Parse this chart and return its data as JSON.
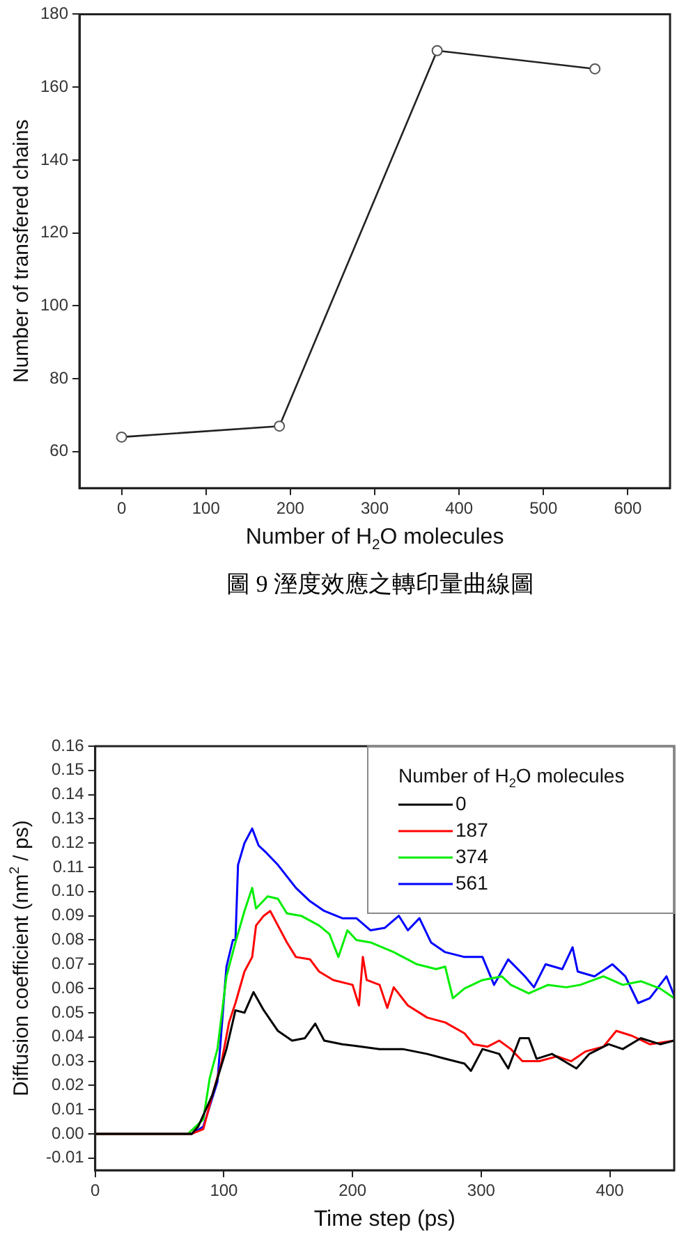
{
  "chart_data": [
    {
      "type": "line",
      "xlabel": "Number of H$_{2}$O molecules",
      "ylabel": "Number of transfered chains",
      "x": [
        0,
        187,
        374,
        561
      ],
      "values": [
        64,
        67,
        170,
        165
      ],
      "color": "#222222",
      "marker": "circle",
      "xlim": [
        -50,
        650
      ],
      "xticks": [
        0,
        100,
        200,
        300,
        400,
        500,
        600
      ],
      "ylim": [
        50,
        180
      ],
      "yticks": [
        60,
        80,
        100,
        120,
        140,
        160,
        180
      ],
      "annotations": [
        "圖 9 溼度效應之轉印量曲線圖"
      ]
    },
    {
      "type": "line",
      "xlabel": "Time step (ps)",
      "ylabel": "Diffusion coefficient (nm$^{2}$ / ps)",
      "legend_title": "Number of H$_{2}$O molecules",
      "legend": "top right",
      "marker": "none",
      "xlim": [
        0,
        450
      ],
      "xticks": [
        0,
        100,
        200,
        300,
        400
      ],
      "ylim": [
        -0.015,
        0.16
      ],
      "yticks": [
        {
          "value": -0.01,
          "label": "-0.01"
        },
        {
          "value": 0,
          "label": "0.00"
        },
        {
          "value": 0.01,
          "label": "0.01"
        },
        {
          "value": 0.02,
          "label": "0.02"
        },
        {
          "value": 0.03,
          "label": "0.03"
        },
        {
          "value": 0.04,
          "label": "0.04"
        },
        {
          "value": 0.05,
          "label": "0.05"
        },
        {
          "value": 0.06,
          "label": "0.06"
        },
        {
          "value": 0.07,
          "label": "0.07"
        },
        {
          "value": 0.08,
          "label": "0.08"
        },
        {
          "value": 0.09,
          "label": "0.09"
        },
        {
          "value": 0.1,
          "label": "0.10"
        },
        {
          "value": 0.11,
          "label": "0.11"
        },
        {
          "value": 0.12,
          "label": "0.12"
        },
        {
          "value": 0.13,
          "label": "0.13"
        },
        {
          "value": 0.14,
          "label": "0.14"
        },
        {
          "value": 0.15,
          "label": "0.15"
        },
        {
          "value": 0.16,
          "label": "0.16"
        }
      ],
      "series": [
        {
          "name": "0",
          "color": "#000000",
          "x": [
            0,
            75,
            80,
            91,
            102,
            109,
            116,
            123,
            131,
            142,
            153,
            163,
            171,
            178,
            192,
            207,
            221,
            239,
            258,
            272,
            287,
            292,
            301,
            314,
            321,
            330,
            337,
            343,
            355,
            374,
            384,
            399,
            410,
            424,
            439,
            450
          ],
          "values": [
            0,
            0,
            0.003,
            0.016,
            0.035,
            0.051,
            0.05,
            0.0585,
            0.051,
            0.0425,
            0.0385,
            0.0395,
            0.0455,
            0.0385,
            0.037,
            0.036,
            0.035,
            0.035,
            0.033,
            0.031,
            0.029,
            0.026,
            0.035,
            0.033,
            0.027,
            0.0395,
            0.0395,
            0.031,
            0.033,
            0.027,
            0.033,
            0.037,
            0.035,
            0.0395,
            0.037,
            0.0385
          ]
        },
        {
          "name": "187",
          "color": "#ff0000",
          "x": [
            0,
            75,
            84,
            91,
            98,
            104,
            109,
            116,
            122,
            125,
            131,
            136,
            142,
            149,
            156,
            167,
            174,
            185,
            200,
            205,
            208,
            211,
            221,
            227,
            232,
            243,
            258,
            272,
            287,
            294,
            305,
            314,
            323,
            332,
            345,
            359,
            370,
            381,
            395,
            405,
            417,
            431,
            450
          ],
          "values": [
            0,
            0,
            0.002,
            0.016,
            0.029,
            0.046,
            0.054,
            0.067,
            0.073,
            0.086,
            0.09,
            0.092,
            0.086,
            0.079,
            0.073,
            0.072,
            0.067,
            0.0635,
            0.0615,
            0.053,
            0.073,
            0.0635,
            0.0615,
            0.052,
            0.0605,
            0.053,
            0.048,
            0.046,
            0.0415,
            0.037,
            0.036,
            0.0385,
            0.035,
            0.03,
            0.03,
            0.032,
            0.03,
            0.034,
            0.036,
            0.0425,
            0.0405,
            0.037,
            0.0385
          ]
        },
        {
          "name": "374",
          "color": "#00ee00",
          "x": [
            0,
            72,
            76,
            84,
            89,
            95,
            102,
            109,
            116,
            122,
            125,
            134,
            142,
            149,
            160,
            174,
            182,
            189,
            196,
            203,
            214,
            232,
            250,
            265,
            272,
            278,
            287,
            301,
            316,
            323,
            337,
            352,
            366,
            377,
            395,
            410,
            424,
            439,
            450
          ],
          "values": [
            0,
            0,
            0.002,
            0.006,
            0.023,
            0.035,
            0.065,
            0.079,
            0.092,
            0.1015,
            0.093,
            0.098,
            0.097,
            0.091,
            0.09,
            0.086,
            0.0825,
            0.073,
            0.084,
            0.08,
            0.079,
            0.075,
            0.07,
            0.068,
            0.069,
            0.056,
            0.06,
            0.0635,
            0.065,
            0.0615,
            0.058,
            0.0615,
            0.0605,
            0.0615,
            0.065,
            0.0615,
            0.063,
            0.06,
            0.056
          ]
        },
        {
          "name": "561",
          "color": "#0000ff",
          "x": [
            0,
            75,
            84,
            95,
            102,
            107,
            109,
            111,
            116,
            122,
            127,
            133,
            142,
            156,
            167,
            178,
            192,
            203,
            214,
            225,
            236,
            243,
            252,
            261,
            272,
            287,
            301,
            310,
            321,
            334,
            341,
            350,
            363,
            371,
            375,
            388,
            402,
            412,
            422,
            431,
            444,
            450
          ],
          "values": [
            0,
            0,
            0.003,
            0.0215,
            0.069,
            0.08,
            0.08,
            0.111,
            0.12,
            0.126,
            0.119,
            0.116,
            0.111,
            0.1015,
            0.096,
            0.092,
            0.089,
            0.089,
            0.084,
            0.085,
            0.09,
            0.084,
            0.089,
            0.079,
            0.075,
            0.073,
            0.073,
            0.0615,
            0.072,
            0.065,
            0.0605,
            0.07,
            0.068,
            0.077,
            0.067,
            0.065,
            0.07,
            0.065,
            0.054,
            0.056,
            0.065,
            0.057
          ]
        }
      ]
    }
  ]
}
